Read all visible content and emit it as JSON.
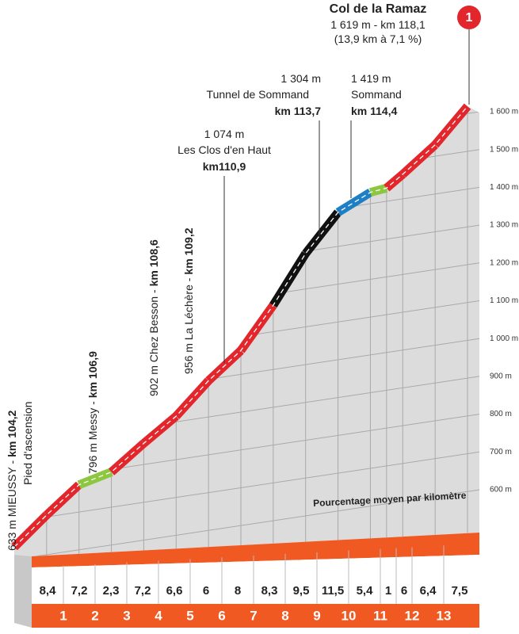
{
  "chart_data": {
    "type": "profile",
    "title": "Col de la Ramaz",
    "subtitle": [
      "1 619 m - km 118,1",
      "(13,9 km à 7,1 %)"
    ],
    "summit_badge": "1",
    "annotations": [
      {
        "text": "633 m MIEUSSY -",
        "km": "km 104,2",
        "note": "Pied d'ascension"
      },
      {
        "text": "796 m  Messy -",
        "km": "km 106,9"
      },
      {
        "text": "902 m Chez Besson -",
        "km": "km 108,6"
      },
      {
        "text": "956 m La Léchère -",
        "km": "km 109,2"
      },
      {
        "altitude": "1 074 m",
        "place": "Les Clos d'en Haut",
        "km": "km110,9"
      },
      {
        "altitude": "1 304 m",
        "place": "Tunnel de Sommand",
        "km": "km 113,7"
      },
      {
        "altitude": "1 419 m",
        "place": "Sommand",
        "km": "km 114,4"
      }
    ],
    "distance": [
      0,
      1,
      2,
      3,
      4,
      5,
      6,
      7,
      8,
      9,
      10,
      11,
      11.5,
      12,
      13,
      14
    ],
    "elevation": [
      633,
      705,
      772,
      793,
      856,
      915,
      996,
      1063,
      1170,
      1294,
      1390,
      1430,
      1435,
      1465,
      1530,
      1619
    ],
    "xlim": [
      0,
      14
    ],
    "ylim": [
      600,
      1600
    ],
    "yticks": [
      {
        "value": 600,
        "label": "600 m"
      },
      {
        "value": 700,
        "label": "700 m"
      },
      {
        "value": 800,
        "label": "800 m"
      },
      {
        "value": 900,
        "label": "900 m"
      },
      {
        "value": 1000,
        "label": "1 000 m"
      },
      {
        "value": 1100,
        "label": "1 100 m"
      },
      {
        "value": 1200,
        "label": "1 200 m"
      },
      {
        "value": 1300,
        "label": "1 300 m"
      },
      {
        "value": 1400,
        "label": "1 400 m"
      },
      {
        "value": 1500,
        "label": "1 500 m"
      },
      {
        "value": 1600,
        "label": "1 600 m"
      }
    ],
    "gradients": {
      "values": [
        8.4,
        7.2,
        2.3,
        7.2,
        6.6,
        6,
        8,
        8.3,
        9.5,
        11.5,
        5.4,
        1,
        6,
        6.4,
        7.5
      ],
      "value_labels": [
        "8,4",
        "7,2",
        "2,3",
        "7,2",
        "6,6",
        "6",
        "8",
        "8,3",
        "9,5",
        "11,5",
        "5,4",
        "1",
        "6",
        "6,4",
        "7,5"
      ],
      "colors": [
        "#e3262b",
        "#e3262b",
        "#8dc63f",
        "#e3262b",
        "#e3262b",
        "#e3262b",
        "#e3262b",
        "#e3262b",
        "#111111",
        "#111111",
        "#1f7fc4",
        "#8dc63f",
        "#e3262b",
        "#e3262b",
        "#e3262b"
      ]
    },
    "gradient_caption": "Pourcentage moyen par kilomètre",
    "km_markers": [
      1,
      2,
      3,
      4,
      5,
      6,
      7,
      8,
      9,
      10,
      11,
      12,
      13
    ]
  }
}
